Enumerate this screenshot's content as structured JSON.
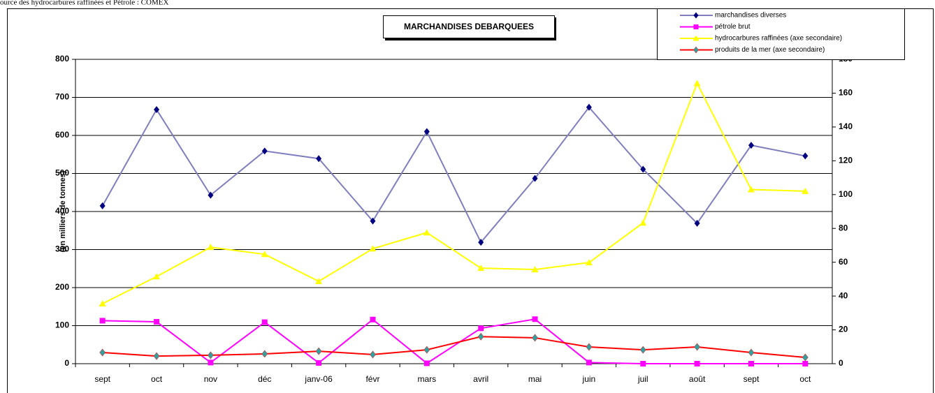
{
  "source_note": "ource des hydrocarbures raffinées et Pétrole :  COMEX",
  "chart_data": {
    "type": "line",
    "title": "MARCHANDISES DEBARQUEES",
    "ylabel": "(en milliers de tonnes)",
    "categories": [
      "sept",
      "oct",
      "nov",
      "déc",
      "janv-06",
      "févr",
      "mars",
      "avril",
      "mai",
      "juin",
      "juil",
      "août",
      "sept",
      "oct"
    ],
    "ylim": [
      0,
      800
    ],
    "yticks": [
      0,
      100,
      200,
      300,
      400,
      500,
      600,
      700,
      800
    ],
    "y2lim": [
      0,
      180
    ],
    "y2ticks": [
      0,
      20,
      40,
      60,
      80,
      100,
      120,
      140,
      160,
      180
    ],
    "grid": true,
    "legend": "top-right",
    "series": [
      {
        "name": "marchandises diverses",
        "color": "#7f7fbf",
        "marker_color": "#000080",
        "marker": "diamond",
        "values": [
          415,
          668,
          443,
          559,
          539,
          375,
          610,
          319,
          487,
          674,
          511,
          369,
          574,
          546
        ]
      },
      {
        "name": "pétrole brut",
        "color": "#ff00ff",
        "marker_color": "#ff00ff",
        "marker": "square",
        "values": [
          113,
          110,
          3,
          109,
          2,
          116,
          1,
          93,
          117,
          3,
          0,
          0,
          0,
          0
        ]
      },
      {
        "name": "hydrocarbures raffinées (axe secondaire)",
        "color": "#ffff00",
        "marker_color": "#ffff00",
        "marker": "triangle",
        "axis": "y2",
        "values": [
          35.5,
          51.5,
          68.9,
          64.7,
          48.7,
          68,
          77.5,
          56.5,
          55.7,
          59.8,
          83.3,
          165.8,
          103,
          102
        ]
      },
      {
        "name": "produits de la mer (axe secondaire)",
        "color": "#ff0000",
        "marker_color": "#33a0a0",
        "marker": "diamond",
        "axis": "y2",
        "values": [
          6.6,
          4.5,
          5,
          5.8,
          7.4,
          5.4,
          8.2,
          16,
          15.3,
          9.9,
          8.2,
          9.9,
          6.6,
          3.7
        ]
      }
    ]
  }
}
